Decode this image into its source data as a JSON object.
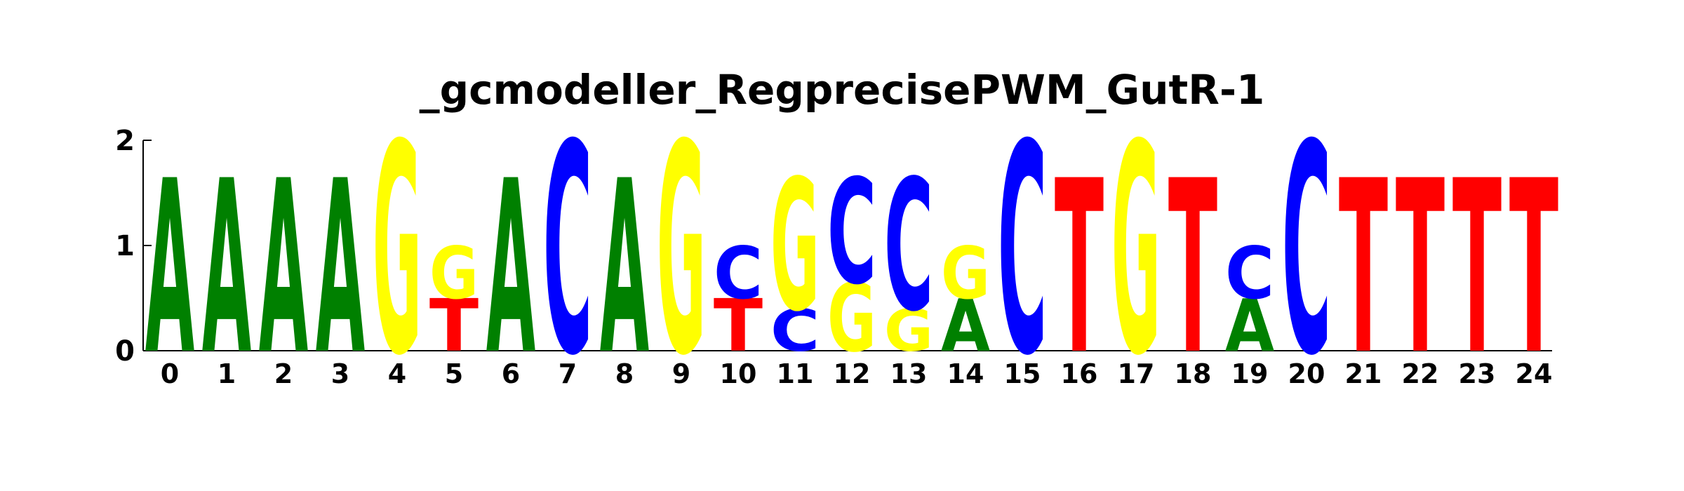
{
  "chart_data": {
    "type": "sequence-logo",
    "title": "_gcmodeller_RegprecisePWM_GutR-1",
    "xlabel": "",
    "ylabel": "",
    "ylim": [
      0,
      2
    ],
    "y_ticks": [
      "0",
      "1",
      "2"
    ],
    "colors": {
      "A": "#008000",
      "C": "#0000ff",
      "G": "#ffff00",
      "T": "#ff0000"
    },
    "positions": [
      {
        "x": "0",
        "letters": [
          {
            "base": "A",
            "height": 1.65
          }
        ]
      },
      {
        "x": "1",
        "letters": [
          {
            "base": "A",
            "height": 1.65
          }
        ]
      },
      {
        "x": "2",
        "letters": [
          {
            "base": "A",
            "height": 1.65
          }
        ]
      },
      {
        "x": "3",
        "letters": [
          {
            "base": "A",
            "height": 1.65
          }
        ]
      },
      {
        "x": "4",
        "letters": [
          {
            "base": "G",
            "height": 2.0
          }
        ]
      },
      {
        "x": "5",
        "letters": [
          {
            "base": "T",
            "height": 0.5
          },
          {
            "base": "G",
            "height": 0.5
          }
        ]
      },
      {
        "x": "6",
        "letters": [
          {
            "base": "A",
            "height": 1.65
          }
        ]
      },
      {
        "x": "7",
        "letters": [
          {
            "base": "C",
            "height": 2.0
          }
        ]
      },
      {
        "x": "8",
        "letters": [
          {
            "base": "A",
            "height": 1.65
          }
        ]
      },
      {
        "x": "9",
        "letters": [
          {
            "base": "G",
            "height": 2.0
          }
        ]
      },
      {
        "x": "10",
        "letters": [
          {
            "base": "T",
            "height": 0.5
          },
          {
            "base": "C",
            "height": 0.5
          }
        ]
      },
      {
        "x": "11",
        "letters": [
          {
            "base": "C",
            "height": 0.4
          },
          {
            "base": "G",
            "height": 1.25
          }
        ]
      },
      {
        "x": "12",
        "letters": [
          {
            "base": "G",
            "height": 0.65
          },
          {
            "base": "C",
            "height": 1.0
          }
        ]
      },
      {
        "x": "13",
        "letters": [
          {
            "base": "G",
            "height": 0.4
          },
          {
            "base": "C",
            "height": 1.25
          }
        ]
      },
      {
        "x": "14",
        "letters": [
          {
            "base": "A",
            "height": 0.5
          },
          {
            "base": "G",
            "height": 0.5
          }
        ]
      },
      {
        "x": "15",
        "letters": [
          {
            "base": "C",
            "height": 2.0
          }
        ]
      },
      {
        "x": "16",
        "letters": [
          {
            "base": "T",
            "height": 1.65
          }
        ]
      },
      {
        "x": "17",
        "letters": [
          {
            "base": "G",
            "height": 2.0
          }
        ]
      },
      {
        "x": "18",
        "letters": [
          {
            "base": "T",
            "height": 1.65
          }
        ]
      },
      {
        "x": "19",
        "letters": [
          {
            "base": "A",
            "height": 0.5
          },
          {
            "base": "C",
            "height": 0.5
          }
        ]
      },
      {
        "x": "20",
        "letters": [
          {
            "base": "C",
            "height": 2.0
          }
        ]
      },
      {
        "x": "21",
        "letters": [
          {
            "base": "T",
            "height": 1.65
          }
        ]
      },
      {
        "x": "22",
        "letters": [
          {
            "base": "T",
            "height": 1.65
          }
        ]
      },
      {
        "x": "23",
        "letters": [
          {
            "base": "T",
            "height": 1.65
          }
        ]
      },
      {
        "x": "24",
        "letters": [
          {
            "base": "T",
            "height": 1.65
          }
        ]
      }
    ]
  }
}
